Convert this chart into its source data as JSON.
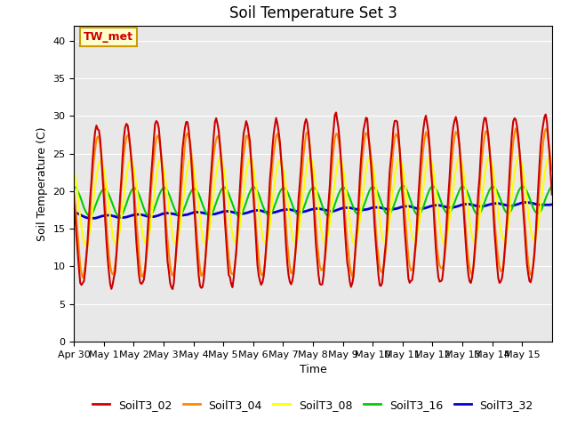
{
  "title": "Soil Temperature Set 3",
  "xlabel": "Time",
  "ylabel": "Soil Temperature (C)",
  "ylim": [
    0,
    42
  ],
  "yticks": [
    0,
    5,
    10,
    15,
    20,
    25,
    30,
    35,
    40
  ],
  "bg_color": "#e8e8e8",
  "annotation_text": "TW_met",
  "annotation_color": "#cc0000",
  "annotation_bg": "#ffffcc",
  "annotation_border": "#cc9900",
  "series": {
    "SoilT3_02": {
      "color": "#cc0000",
      "lw": 1.5
    },
    "SoilT3_04": {
      "color": "#ff8800",
      "lw": 1.5
    },
    "SoilT3_08": {
      "color": "#ffff00",
      "lw": 1.5
    },
    "SoilT3_16": {
      "color": "#00cc00",
      "lw": 1.5
    },
    "SoilT3_32": {
      "color": "#0000cc",
      "lw": 2.0
    }
  },
  "xtick_labels": [
    "Apr 30",
    "May 1",
    "May 2",
    "May 3",
    "May 4",
    "May 5",
    "May 6",
    "May 7",
    "May 8",
    "May 9",
    "May 10",
    "May 11",
    "May 12",
    "May 13",
    "May 14",
    "May 15"
  ],
  "n_days": 16,
  "points_per_day": 24
}
